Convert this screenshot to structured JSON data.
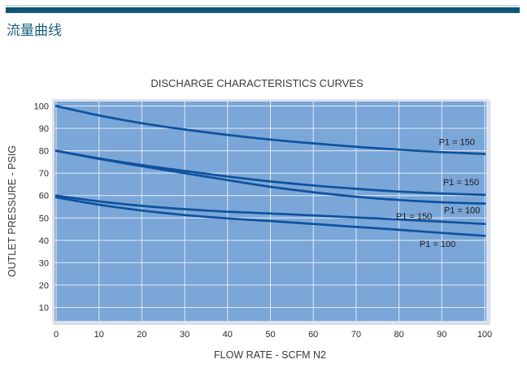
{
  "header": {
    "title": "流量曲线"
  },
  "chart_data": {
    "type": "line",
    "title": "DISCHARGE CHARACTERISTICS CURVES",
    "xlabel": "FLOW RATE - SCFM N2",
    "ylabel": "OUTLET PRESSURE - PSIG",
    "x": [
      0,
      10,
      20,
      30,
      40,
      50,
      60,
      70,
      80,
      90,
      100
    ],
    "xlim": [
      0,
      100
    ],
    "ylim": [
      0,
      102
    ],
    "x_ticks": [
      0,
      10,
      20,
      30,
      40,
      50,
      60,
      70,
      80,
      90,
      100
    ],
    "y_ticks": [
      10,
      20,
      30,
      40,
      50,
      60,
      70,
      80,
      90,
      100
    ],
    "grid": true,
    "legend_position": "inline-labels",
    "series": [
      {
        "label": "P1 = 150",
        "values": [
          100,
          95.8,
          92.3,
          89.5,
          87.1,
          85.0,
          83.3,
          81.8,
          80.5,
          79.4,
          78.6
        ],
        "label_anchor": {
          "x": 93.5,
          "y": 84.0
        }
      },
      {
        "label": "P1 = 150",
        "values": [
          80,
          76.6,
          73.6,
          71.0,
          68.5,
          66.3,
          64.5,
          63.0,
          61.8,
          60.9,
          60.3
        ],
        "label_anchor": {
          "x": 94.5,
          "y": 66.0
        }
      },
      {
        "label": "P1 = 100",
        "values": [
          80,
          76.4,
          73.1,
          70.0,
          66.9,
          63.9,
          61.5,
          59.5,
          58.0,
          57.0,
          56.4
        ],
        "label_anchor": {
          "x": 94.7,
          "y": 53.5
        }
      },
      {
        "label": "P1 = 150",
        "values": [
          60,
          57.4,
          55.4,
          53.9,
          52.8,
          52.0,
          51.1,
          50.2,
          49.3,
          48.3,
          47.3
        ],
        "label_anchor": {
          "x": 83.5,
          "y": 50.8
        }
      },
      {
        "label": "P1 = 100",
        "values": [
          59.2,
          55.9,
          53.3,
          51.3,
          49.8,
          48.6,
          47.3,
          46.0,
          44.7,
          43.3,
          42.0
        ],
        "label_anchor": {
          "x": 89.0,
          "y": 38.4
        }
      }
    ],
    "colors": {
      "plot_background": "#7aa6d8",
      "gridline": "#e8ebf3",
      "plot_border": "#dde2ee",
      "curve": "#0d529e",
      "accent_bar": "#0d5774",
      "heading_text": "#1a617b"
    }
  }
}
